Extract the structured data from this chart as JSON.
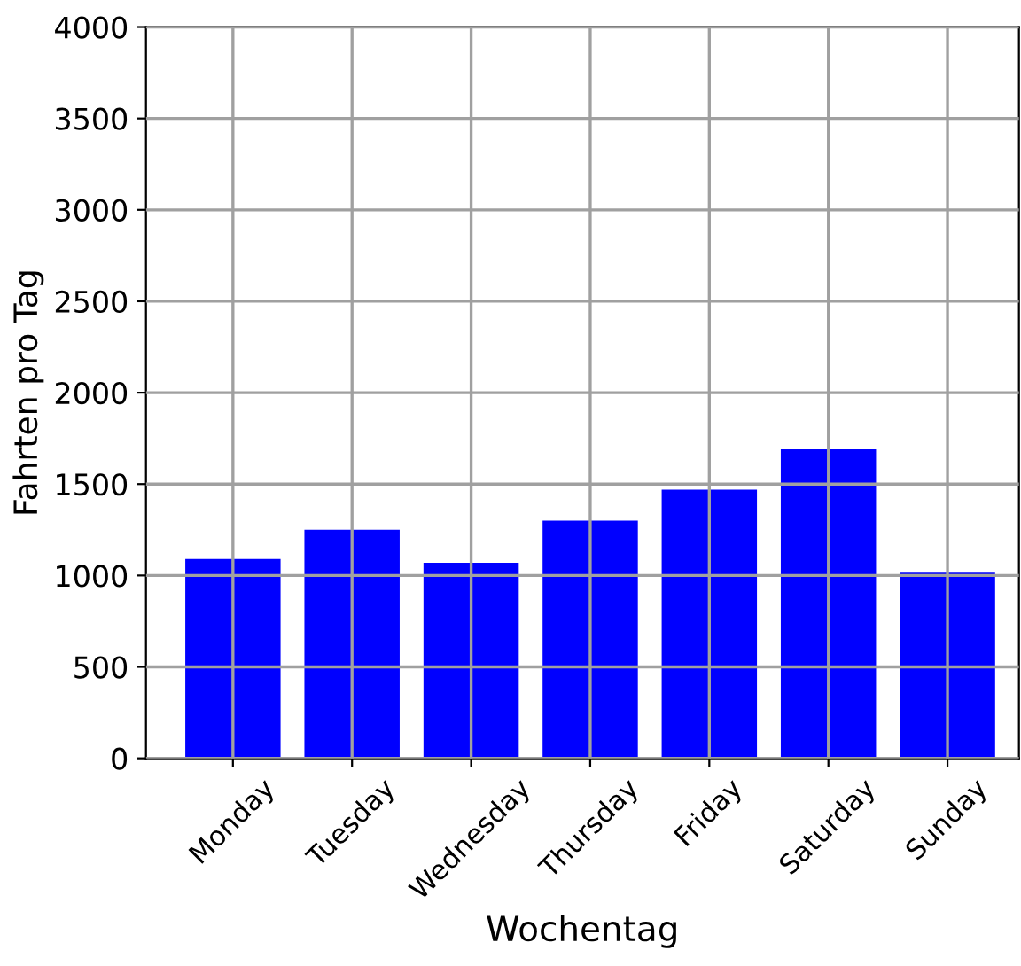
{
  "chart_data": {
    "type": "bar",
    "xlabel": "Wochentag",
    "ylabel": "Fahrten pro Tag",
    "categories": [
      "Monday",
      "Tuesday",
      "Wednesday",
      "Thursday",
      "Friday",
      "Saturday",
      "Sunday"
    ],
    "values": [
      1090,
      1250,
      1070,
      1300,
      1470,
      1690,
      1020
    ],
    "color": "#0000ff",
    "ylim": [
      0,
      4000
    ],
    "yticks": [
      0,
      500,
      1000,
      1500,
      2000,
      2500,
      3000,
      3500,
      4000
    ],
    "grid": true
  }
}
